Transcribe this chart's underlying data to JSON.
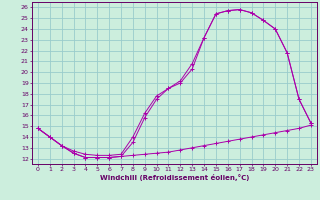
{
  "xlabel": "Windchill (Refroidissement éolien,°C)",
  "bg_color": "#cceedd",
  "line_color": "#aa00aa",
  "grid_color": "#99cccc",
  "text_color": "#660066",
  "xlim": [
    -0.5,
    23.5
  ],
  "ylim": [
    11.5,
    26.5
  ],
  "xticks": [
    0,
    1,
    2,
    3,
    4,
    5,
    6,
    7,
    8,
    9,
    10,
    11,
    12,
    13,
    14,
    15,
    16,
    17,
    18,
    19,
    20,
    21,
    22,
    23
  ],
  "yticks": [
    12,
    13,
    14,
    15,
    16,
    17,
    18,
    19,
    20,
    21,
    22,
    23,
    24,
    25,
    26
  ],
  "line1_x": [
    0,
    1,
    2,
    3,
    4,
    5,
    6,
    7,
    8,
    9,
    10,
    11,
    12,
    13,
    14,
    15,
    16,
    17,
    18,
    19,
    20,
    21,
    22,
    23
  ],
  "line1_y": [
    14.8,
    14.0,
    13.2,
    12.5,
    12.1,
    12.1,
    12.1,
    12.2,
    12.3,
    12.4,
    12.5,
    12.6,
    12.8,
    13.0,
    13.2,
    13.4,
    13.6,
    13.8,
    14.0,
    14.2,
    14.4,
    14.6,
    14.8,
    15.1
  ],
  "line2_x": [
    0,
    1,
    2,
    3,
    4,
    5,
    6,
    7,
    8,
    9,
    10,
    11,
    12,
    13,
    14,
    15,
    16,
    17,
    18,
    19,
    20,
    21,
    22,
    23
  ],
  "line2_y": [
    14.8,
    14.0,
    13.2,
    12.5,
    12.1,
    12.1,
    12.1,
    12.2,
    13.5,
    15.8,
    17.5,
    18.5,
    19.2,
    20.8,
    23.2,
    25.4,
    25.7,
    25.8,
    25.5,
    24.8,
    24.0,
    21.8,
    17.5,
    15.3
  ],
  "line3_x": [
    0,
    1,
    2,
    3,
    4,
    5,
    6,
    7,
    8,
    9,
    10,
    11,
    12,
    13,
    14,
    15,
    16,
    17,
    18,
    19,
    20,
    21,
    22,
    23
  ],
  "line3_y": [
    14.8,
    14.0,
    13.2,
    12.7,
    12.4,
    12.3,
    12.3,
    12.4,
    14.0,
    16.2,
    17.8,
    18.5,
    19.0,
    20.3,
    23.2,
    25.4,
    25.7,
    25.8,
    25.5,
    24.8,
    24.0,
    21.8,
    17.5,
    15.3
  ]
}
